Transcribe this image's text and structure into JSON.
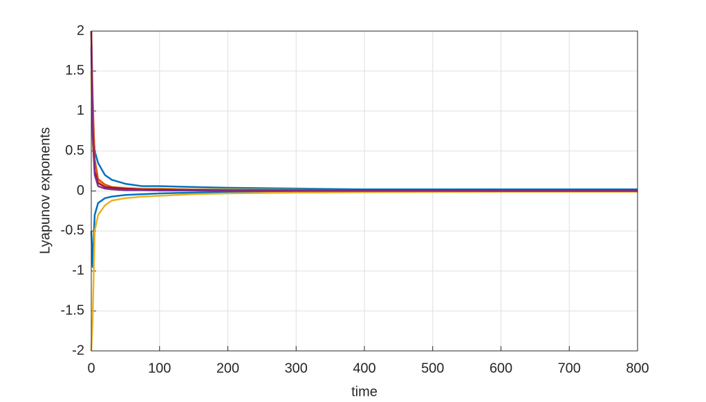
{
  "chart_data": {
    "type": "line",
    "xlabel": "time",
    "ylabel": "Lyapunov exponents",
    "x": [
      0,
      2,
      5,
      10,
      20,
      30,
      50,
      75,
      100,
      150,
      200,
      300,
      400,
      600,
      800
    ],
    "series": [
      {
        "color": "#0072BD",
        "values": [
          2,
          0.9,
          0.5,
          0.35,
          0.2,
          0.14,
          0.09,
          0.06,
          0.06,
          0.05,
          0.04,
          0.03,
          0.02,
          0.02,
          0.02
        ]
      },
      {
        "color": "#0072BD",
        "values": [
          -0.5,
          -0.95,
          -0.3,
          -0.15,
          -0.09,
          -0.07,
          -0.05,
          -0.04,
          -0.03,
          -0.02,
          -0.015,
          -0.01,
          -0.01,
          -0.005,
          -0.005
        ]
      },
      {
        "color": "#EDB120",
        "values": [
          -2,
          -1.6,
          -0.5,
          -0.3,
          -0.18,
          -0.12,
          -0.09,
          -0.07,
          -0.06,
          -0.04,
          -0.03,
          -0.02,
          -0.015,
          -0.01,
          -0.01
        ]
      },
      {
        "color": "#EDB120",
        "values": [
          1.5,
          0.6,
          0.25,
          0.12,
          0.07,
          0.05,
          0.04,
          0.03,
          0.03,
          0.02,
          0.02,
          0.015,
          0.01,
          0.01,
          0.01
        ]
      },
      {
        "color": "#D95319",
        "values": [
          2,
          1.2,
          0.4,
          0.15,
          0.08,
          0.05,
          0.03,
          0.02,
          0.015,
          0.01,
          0.01,
          0.005,
          0.005,
          0,
          0
        ]
      },
      {
        "color": "#A2142F",
        "values": [
          2,
          0.8,
          0.25,
          0.1,
          0.05,
          0.04,
          0.03,
          0.02,
          0.02,
          0.015,
          0.01,
          0.01,
          0.01,
          0.01,
          0.01
        ]
      },
      {
        "color": "#7E2F8E",
        "values": [
          1.8,
          0.7,
          0.2,
          0.06,
          0.03,
          0.02,
          0.01,
          0.01,
          0.005,
          0.005,
          0,
          0,
          0,
          0,
          0
        ]
      }
    ],
    "xlim": [
      0,
      800
    ],
    "xticks": [
      0,
      100,
      200,
      300,
      400,
      500,
      600,
      700,
      800
    ],
    "ylim": [
      -2,
      2
    ],
    "yticks": [
      -2,
      -1.5,
      -1,
      -0.5,
      0,
      0.5,
      1,
      1.5,
      2
    ],
    "grid": true
  }
}
